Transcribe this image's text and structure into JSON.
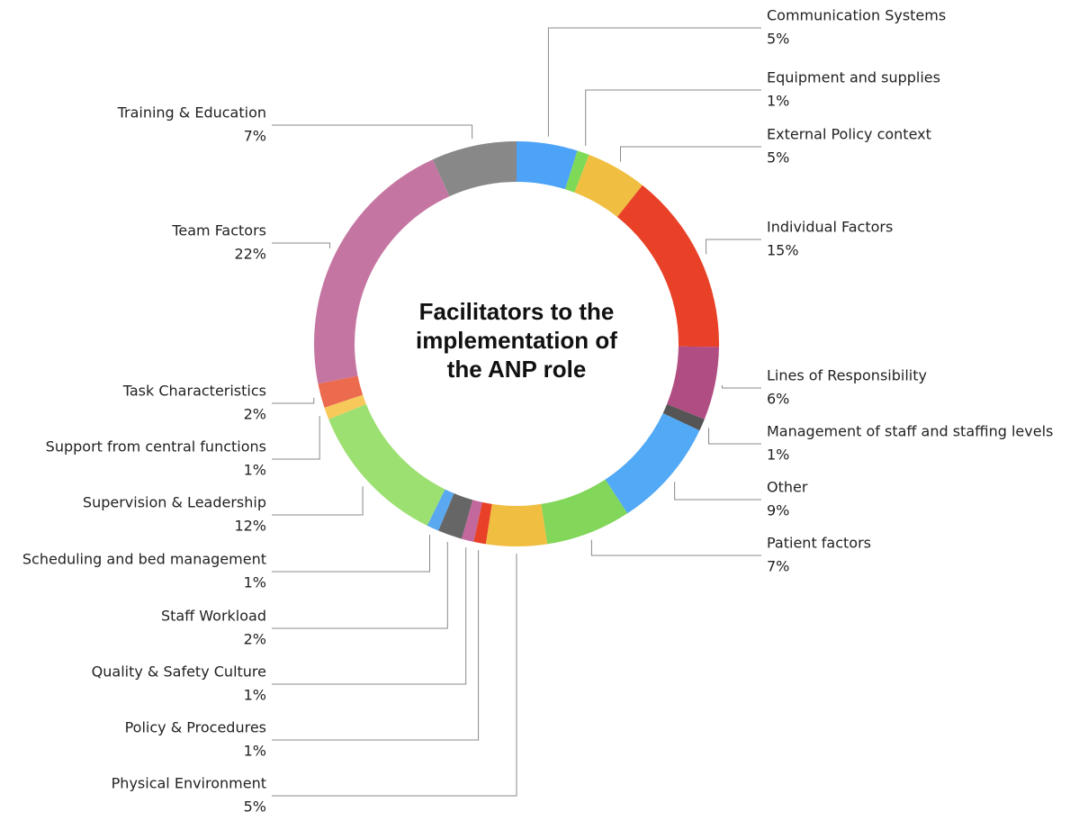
{
  "chart_data": {
    "type": "donut",
    "title": "Facilitators to the implementation of the ANP role",
    "categories": [
      "Communication Systems",
      "Equipment and supplies",
      "External Policy context",
      "Individual Factors",
      "Lines of Responsibility",
      "Management of staff and staffing levels",
      "Other",
      "Patient factors",
      "Physical Environment",
      "Policy & Procedures",
      "Quality & Safety Culture",
      "Staff Workload",
      "Scheduling and bed management",
      "Supervision & Leadership",
      "Support from central functions",
      "Task Characteristics",
      "Team Factors",
      "Training & Education"
    ],
    "values": [
      5,
      1,
      5,
      15,
      6,
      1,
      9,
      7,
      5,
      1,
      1,
      2,
      1,
      12,
      1,
      2,
      22,
      7
    ],
    "value_labels": [
      "5%",
      "1%",
      "5%",
      "15%",
      "6%",
      "1%",
      "9%",
      "7%",
      "5%",
      "1%",
      "1%",
      "2%",
      "1%",
      "12%",
      "1%",
      "2%",
      "22%",
      "7%"
    ],
    "colors": [
      "#4da3f7",
      "#7ed957",
      "#f0be41",
      "#e84127",
      "#b04d82",
      "#555555",
      "#52a9f5",
      "#82d65a",
      "#f0be41",
      "#e84127",
      "#c2689c",
      "#666666",
      "#5aa8f0",
      "#9ce071",
      "#f7c95a",
      "#ec6a4e",
      "#c575a1",
      "#888888"
    ]
  }
}
